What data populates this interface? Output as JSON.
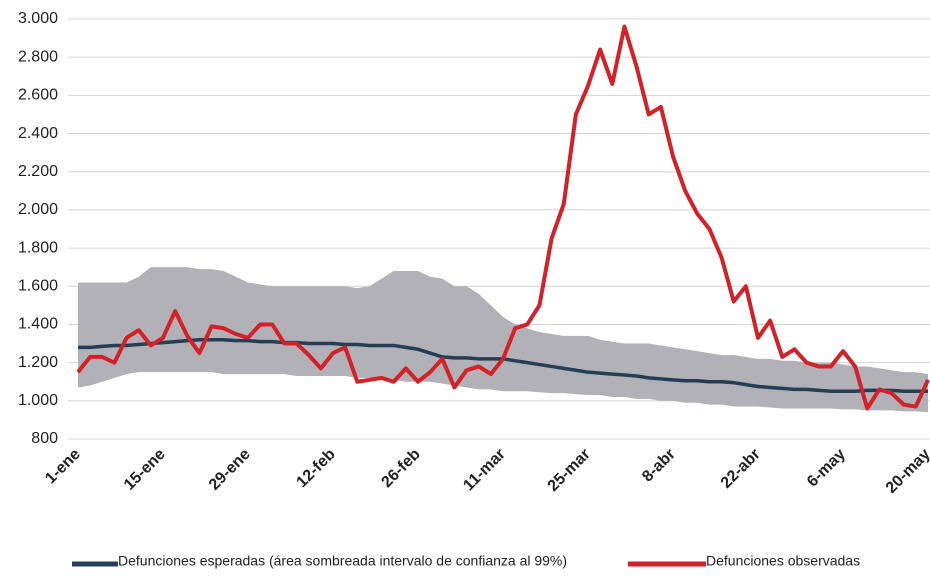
{
  "chart_data": {
    "type": "line",
    "categories": [
      "1-ene",
      null,
      null,
      null,
      null,
      null,
      null,
      "15-ene",
      null,
      null,
      null,
      null,
      null,
      null,
      "29-ene",
      null,
      null,
      null,
      null,
      null,
      null,
      "12-feb",
      null,
      null,
      null,
      null,
      null,
      null,
      "26-feb",
      null,
      null,
      null,
      null,
      null,
      null,
      "11-mar",
      null,
      null,
      null,
      null,
      null,
      null,
      "25-mar",
      null,
      null,
      null,
      null,
      null,
      null,
      "8-abr",
      null,
      null,
      null,
      null,
      null,
      null,
      "22-abr",
      null,
      null,
      null,
      null,
      null,
      null,
      "6-may",
      null,
      null,
      null,
      null,
      null,
      null,
      "20-may"
    ],
    "band": {
      "color": "#b3b1b8",
      "upper": [
        1620,
        1620,
        1620,
        1620,
        1620,
        1650,
        1700,
        1700,
        1700,
        1700,
        1690,
        1690,
        1680,
        1650,
        1620,
        1610,
        1600,
        1600,
        1600,
        1600,
        1600,
        1600,
        1600,
        1590,
        1600,
        1640,
        1680,
        1680,
        1680,
        1650,
        1640,
        1600,
        1600,
        1560,
        1500,
        1440,
        1400,
        1380,
        1360,
        1350,
        1340,
        1340,
        1340,
        1320,
        1310,
        1300,
        1300,
        1300,
        1290,
        1280,
        1270,
        1260,
        1250,
        1240,
        1240,
        1230,
        1220,
        1220,
        1210,
        1210,
        1200,
        1200,
        1200,
        1190,
        1180,
        1180,
        1170,
        1160,
        1150,
        1150,
        1140
      ],
      "lower": [
        1070,
        1080,
        1100,
        1120,
        1140,
        1150,
        1150,
        1150,
        1150,
        1150,
        1150,
        1150,
        1140,
        1140,
        1140,
        1140,
        1140,
        1140,
        1130,
        1130,
        1130,
        1130,
        1130,
        1120,
        1120,
        1110,
        1110,
        1100,
        1100,
        1100,
        1090,
        1080,
        1070,
        1060,
        1060,
        1050,
        1050,
        1050,
        1045,
        1040,
        1040,
        1035,
        1030,
        1030,
        1020,
        1020,
        1010,
        1010,
        1000,
        1000,
        990,
        990,
        980,
        980,
        970,
        970,
        970,
        965,
        960,
        960,
        960,
        960,
        960,
        955,
        955,
        950,
        950,
        950,
        945,
        945,
        940
      ]
    },
    "series": [
      {
        "name": "Defunciones esperadas (área sombreada intervalo de confianza al 99%)",
        "color": "#243f55",
        "values": [
          1280,
          1280,
          1285,
          1290,
          1290,
          1295,
          1300,
          1305,
          1310,
          1315,
          1320,
          1320,
          1320,
          1315,
          1315,
          1310,
          1310,
          1305,
          1305,
          1300,
          1300,
          1300,
          1295,
          1295,
          1290,
          1290,
          1290,
          1280,
          1270,
          1250,
          1230,
          1225,
          1225,
          1220,
          1220,
          1220,
          1210,
          1200,
          1190,
          1180,
          1170,
          1160,
          1150,
          1145,
          1140,
          1135,
          1130,
          1120,
          1115,
          1110,
          1105,
          1105,
          1100,
          1100,
          1095,
          1085,
          1075,
          1070,
          1065,
          1060,
          1060,
          1055,
          1050,
          1050,
          1050,
          1055,
          1055,
          1055,
          1050,
          1050,
          1050
        ]
      },
      {
        "name": "Defunciones observadas",
        "color": "#d42027",
        "values": [
          1150,
          1230,
          1230,
          1200,
          1330,
          1370,
          1290,
          1330,
          1470,
          1340,
          1250,
          1390,
          1380,
          1350,
          1330,
          1400,
          1400,
          1300,
          1300,
          1240,
          1170,
          1250,
          1280,
          1100,
          1110,
          1120,
          1100,
          1170,
          1100,
          1150,
          1220,
          1070,
          1160,
          1180,
          1140,
          1220,
          1380,
          1400,
          1500,
          1850,
          2030,
          2500,
          2650,
          2840,
          2660,
          2960,
          2750,
          2500,
          2540,
          2280,
          2100,
          1980,
          1900,
          1750,
          1520,
          1600,
          1330,
          1420,
          1230,
          1270,
          1200,
          1180,
          1180,
          1260,
          1180,
          960,
          1060,
          1040,
          980,
          970,
          1110
        ]
      }
    ],
    "ylim": [
      800,
      3000
    ],
    "yticks": [
      800,
      {
        "value": 1000,
        "label": "1.000"
      },
      {
        "value": 1200,
        "label": "1.200"
      },
      {
        "value": 1400,
        "label": "1.400"
      },
      {
        "value": 1600,
        "label": "1.600"
      },
      {
        "value": 1800,
        "label": "1.800"
      },
      {
        "value": 2000,
        "label": "2.000"
      },
      {
        "value": 2200,
        "label": "2.200"
      },
      {
        "value": 2400,
        "label": "2.400"
      },
      {
        "value": 2600,
        "label": "2.600"
      },
      {
        "value": 2800,
        "label": "2.800"
      },
      {
        "value": 3000,
        "label": "3.000"
      }
    ],
    "grid": true,
    "legend": "bottom"
  }
}
